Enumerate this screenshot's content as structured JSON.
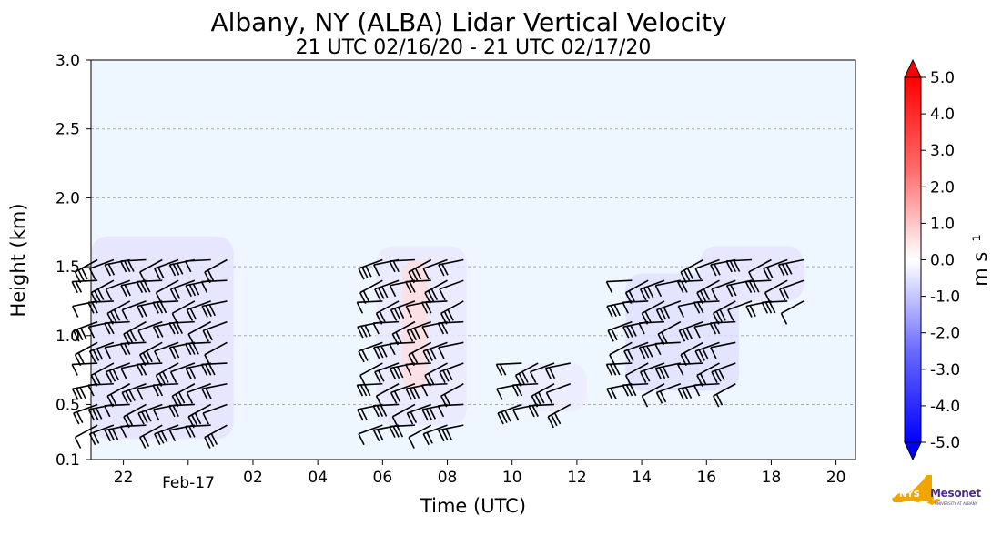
{
  "chart_data": {
    "type": "heatmap",
    "title": "Albany, NY (ALBA) Lidar Vertical Velocity",
    "subtitle": "21 UTC 02/16/20 - 21 UTC 02/17/20",
    "xlabel": "Time (UTC)",
    "ylabel": "Height (km)",
    "x_range_hours": [
      21.0,
      44.6
    ],
    "y_range_km": [
      0.1,
      3.0
    ],
    "x_ticks": [
      {
        "hour": 22,
        "label": "22"
      },
      {
        "hour": 26,
        "label": "02"
      },
      {
        "hour": 28,
        "label": "04"
      },
      {
        "hour": 30,
        "label": "06"
      },
      {
        "hour": 32,
        "label": "08"
      },
      {
        "hour": 34,
        "label": "10"
      },
      {
        "hour": 36,
        "label": "12"
      },
      {
        "hour": 38,
        "label": "14"
      },
      {
        "hour": 40,
        "label": "16"
      },
      {
        "hour": 42,
        "label": "18"
      },
      {
        "hour": 44,
        "label": "20"
      }
    ],
    "x_date_label": {
      "hour": 24,
      "label": "Feb-17"
    },
    "y_ticks": [
      {
        "value": 0.1,
        "label": "0.1"
      },
      {
        "value": 0.5,
        "label": "0.5"
      },
      {
        "value": 1.0,
        "label": "1.0"
      },
      {
        "value": 1.5,
        "label": "1.5"
      },
      {
        "value": 2.0,
        "label": "2.0"
      },
      {
        "value": 2.5,
        "label": "2.5"
      },
      {
        "value": 3.0,
        "label": "3.0"
      }
    ],
    "grid": "horizontal dashed",
    "colorbar": {
      "label": "m s⁻¹",
      "range": [
        -5.0,
        5.0
      ],
      "ticks": [
        "5.0",
        "4.0",
        "3.0",
        "2.0",
        "1.0",
        "0.0",
        "-1.0",
        "-2.0",
        "-3.0",
        "-4.0",
        "-5.0"
      ],
      "colors": {
        "min": "#0000ff",
        "mid": "#ffffff",
        "max": "#ff0000"
      }
    },
    "echo_regions": [
      {
        "hours": [
          21.0,
          25.4
        ],
        "km": [
          0.25,
          1.72
        ],
        "w": -0.6
      },
      {
        "hours": [
          29.8,
          32.6
        ],
        "km": [
          0.35,
          1.65
        ],
        "w": -0.4
      },
      {
        "hours": [
          30.6,
          31.4
        ],
        "km": [
          0.6,
          1.55
        ],
        "w": 0.8
      },
      {
        "hours": [
          34.2,
          36.3
        ],
        "km": [
          0.45,
          0.8
        ],
        "w": -0.3
      },
      {
        "hours": [
          37.5,
          41.0
        ],
        "km": [
          0.6,
          1.45
        ],
        "w": -0.7
      },
      {
        "hours": [
          39.8,
          43.0
        ],
        "km": [
          1.25,
          1.65
        ],
        "w": -0.5
      }
    ],
    "wind_barbs_hours": [
      21.2,
      21.7,
      22.2,
      22.7,
      23.2,
      23.7,
      24.2,
      24.7,
      25.2,
      30.0,
      30.5,
      31.0,
      31.5,
      32.0,
      32.5,
      33.0,
      34.3,
      34.8,
      35.3,
      35.8,
      37.7,
      38.2,
      38.7,
      39.2,
      39.9,
      40.4,
      40.9,
      41.4,
      42.0,
      42.5,
      43.0
    ],
    "wind_barbs_km": [
      0.35,
      0.5,
      0.65,
      0.8,
      0.95,
      1.1,
      1.25,
      1.4,
      1.55
    ]
  },
  "colors": {
    "plot_background": "#eef6ff",
    "grid": "#aaaaaa",
    "barb": "#000000",
    "logo_gold": "#f0a500",
    "logo_purple": "#4b2e83"
  },
  "logo": {
    "brand": "Mesonet",
    "prefix": "NYS",
    "sub": "UNIVERSITY AT ALBANY"
  }
}
